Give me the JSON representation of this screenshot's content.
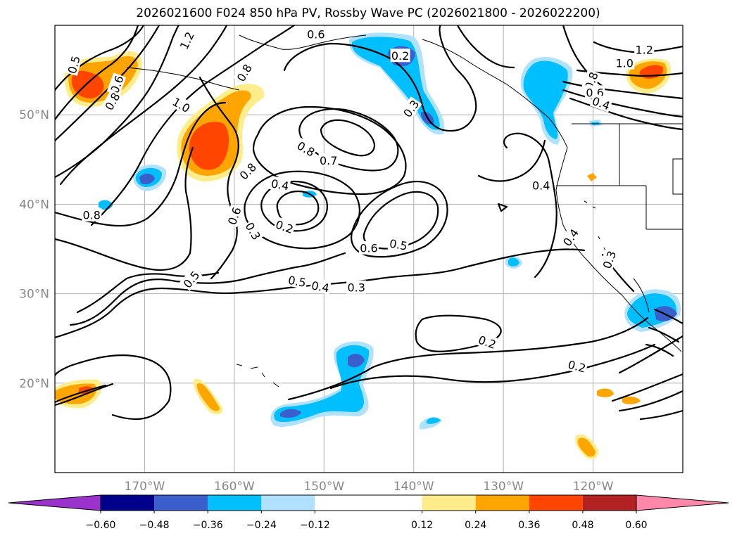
{
  "chart_data": {
    "type": "contour-map",
    "title": "2026021600 F024 850 hPa PV, Rossby Wave PC (2026021800 - 2026022200)",
    "xaxis": {
      "range": [
        -180,
        -110
      ],
      "ticks": [
        -170,
        -160,
        -150,
        -140,
        -130,
        -120
      ],
      "tick_labels": [
        "170°W",
        "160°W",
        "150°W",
        "140°W",
        "130°W",
        "120°W"
      ]
    },
    "yaxis": {
      "range": [
        10,
        60
      ],
      "ticks": [
        20,
        30,
        40,
        50
      ],
      "tick_labels": [
        "20°N",
        "30°N",
        "40°N",
        "50°N"
      ]
    },
    "grid": true,
    "colorbar": {
      "orientation": "horizontal",
      "extend": "both",
      "levels": [
        -0.72,
        -0.6,
        -0.48,
        -0.36,
        -0.24,
        -0.12,
        0.12,
        0.24,
        0.36,
        0.48,
        0.6,
        0.72
      ],
      "colors": [
        "#9933cc",
        "#00008b",
        "#3a5fcd",
        "#00bfff",
        "#b0e2ff",
        "#ffffff",
        "#ffec8b",
        "#ffa500",
        "#ff4500",
        "#b22222",
        "#ff88aa"
      ],
      "tick_values": [
        -0.6,
        -0.48,
        -0.36,
        -0.24,
        -0.12,
        0.12,
        0.24,
        0.36,
        0.48,
        0.6
      ],
      "tick_labels": [
        "−0.60",
        "−0.48",
        "−0.36",
        "−0.24",
        "−0.12",
        "0.12",
        "0.24",
        "0.36",
        "0.48",
        "0.60"
      ]
    },
    "contour_labels": [
      {
        "text": "1.2",
        "lon": -165.3,
        "lat": 58.3,
        "rot": 65
      },
      {
        "text": "0.6",
        "lon": -150.9,
        "lat": 59.0,
        "rot": 0
      },
      {
        "text": "0.2",
        "lon": -141.5,
        "lat": 56.6,
        "rot": 0
      },
      {
        "text": "1.2",
        "lon": -114.3,
        "lat": 57.3,
        "rot": 0
      },
      {
        "text": "1.0",
        "lon": -116.5,
        "lat": 55.8,
        "rot": 0
      },
      {
        "text": "0.5",
        "lon": -177.9,
        "lat": 55.6,
        "rot": 75
      },
      {
        "text": "0.6",
        "lon": -173.1,
        "lat": 53.4,
        "rot": 70
      },
      {
        "text": "0.8",
        "lon": -173.6,
        "lat": 51.5,
        "rot": 60
      },
      {
        "text": "1.0",
        "lon": -165.9,
        "lat": 51.1,
        "rot": -30
      },
      {
        "text": "0.3",
        "lon": -140.3,
        "lat": 50.7,
        "rot": 55
      },
      {
        "text": "0.8",
        "lon": -120.2,
        "lat": 53.8,
        "rot": 70
      },
      {
        "text": "0.6",
        "lon": -119.8,
        "lat": 52.5,
        "rot": 0
      },
      {
        "text": "0.4",
        "lon": -119.1,
        "lat": 51.3,
        "rot": -20
      },
      {
        "text": "0.8",
        "lon": -158.9,
        "lat": 54.7,
        "rot": 60
      },
      {
        "text": "0.8",
        "lon": -152.0,
        "lat": 46.2,
        "rot": -30
      },
      {
        "text": "0.7",
        "lon": -149.5,
        "lat": 44.9,
        "rot": 0
      },
      {
        "text": "0.8",
        "lon": -158.5,
        "lat": 43.7,
        "rot": 45
      },
      {
        "text": "0.4",
        "lon": -154.9,
        "lat": 42.2,
        "rot": -10
      },
      {
        "text": "0.4",
        "lon": -125.8,
        "lat": 42.1,
        "rot": 0
      },
      {
        "text": "0.8",
        "lon": -175.9,
        "lat": 38.8,
        "rot": 0
      },
      {
        "text": "0.6",
        "lon": -160.0,
        "lat": 38.7,
        "rot": 70
      },
      {
        "text": "0.3",
        "lon": -157.9,
        "lat": 37.0,
        "rot": -60
      },
      {
        "text": "0.2",
        "lon": -154.4,
        "lat": 37.5,
        "rot": -20
      },
      {
        "text": "0.6",
        "lon": -145.0,
        "lat": 35.1,
        "rot": 0
      },
      {
        "text": "0.5",
        "lon": -141.7,
        "lat": 35.5,
        "rot": -10
      },
      {
        "text": "0.4",
        "lon": -122.5,
        "lat": 36.3,
        "rot": 55
      },
      {
        "text": "0.3",
        "lon": -118.2,
        "lat": 33.8,
        "rot": 70
      },
      {
        "text": "0.5",
        "lon": -164.8,
        "lat": 31.6,
        "rot": 50
      },
      {
        "text": "0.5",
        "lon": -153.0,
        "lat": 31.4,
        "rot": -10
      },
      {
        "text": "0.4",
        "lon": -150.4,
        "lat": 30.8,
        "rot": -10
      },
      {
        "text": "0.3",
        "lon": -146.4,
        "lat": 30.7,
        "rot": 0
      },
      {
        "text": "0.2",
        "lon": -131.8,
        "lat": 24.6,
        "rot": -20
      },
      {
        "text": "0.2",
        "lon": -121.8,
        "lat": 21.9,
        "rot": -15
      }
    ]
  }
}
